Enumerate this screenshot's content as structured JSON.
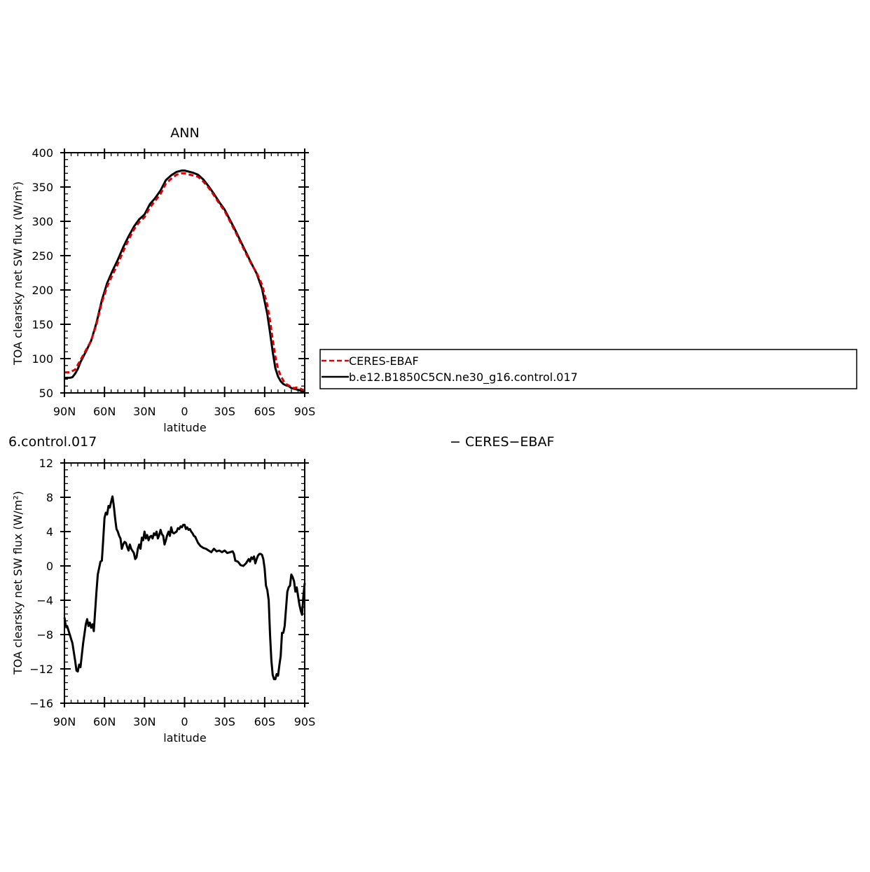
{
  "chart_data": [
    {
      "type": "line",
      "title": "ANN",
      "xlabel": "latitude",
      "ylabel": "TOA clearsky net SW flux (W/m²)",
      "xlim": [
        -90,
        90
      ],
      "ylim": [
        50,
        400
      ],
      "x_ticks": [
        -90,
        -60,
        -30,
        0,
        30,
        60,
        90
      ],
      "x_tick_labels": [
        "90N",
        "60N",
        "30N",
        "0",
        "30S",
        "60S",
        "90S"
      ],
      "y_ticks": [
        50,
        100,
        150,
        200,
        250,
        300,
        350,
        400
      ],
      "y_tick_labels": [
        "50",
        "100",
        "150",
        "200",
        "250",
        "300",
        "350",
        "400"
      ],
      "legend": {
        "placement": "right",
        "entries": [
          "CERES-EBAF",
          "b.e12.B1850C5CN.ne30_g16.control.017"
        ]
      },
      "series": [
        {
          "name": "CERES-EBAF",
          "color": "#dd0000",
          "dash": "dashed",
          "x": [
            -90,
            -86,
            -82,
            -78,
            -74,
            -70,
            -66,
            -62,
            -58,
            -54,
            -50,
            -46,
            -42,
            -38,
            -34,
            -30,
            -26,
            -22,
            -18,
            -14,
            -10,
            -6,
            -2,
            0,
            2,
            6,
            10,
            14,
            18,
            22,
            26,
            30,
            34,
            38,
            42,
            46,
            50,
            54,
            58,
            62,
            64,
            66,
            68,
            70,
            72,
            74,
            76,
            78,
            80,
            82,
            84,
            86,
            88,
            90
          ],
          "y": [
            80,
            80,
            84,
            98,
            112,
            126,
            150,
            182,
            205,
            222,
            238,
            256,
            273,
            288,
            299,
            306,
            320,
            330,
            340,
            355,
            362,
            368,
            370,
            370,
            369,
            367,
            365,
            358,
            349,
            338,
            326,
            315,
            300,
            285,
            269,
            253,
            238,
            225,
            208,
            178,
            155,
            128,
            103,
            85,
            75,
            68,
            63,
            61,
            58,
            57,
            58,
            57,
            55,
            54
          ]
        },
        {
          "name": "b.e12.B1850C5CN.ne30_g16.control.017",
          "color": "#000000",
          "dash": "solid",
          "x": [
            -90,
            -86,
            -84,
            -82,
            -80,
            -78,
            -74,
            -70,
            -66,
            -62,
            -58,
            -54,
            -50,
            -46,
            -42,
            -38,
            -34,
            -30,
            -26,
            -22,
            -18,
            -14,
            -10,
            -6,
            -2,
            0,
            2,
            6,
            10,
            14,
            18,
            22,
            26,
            30,
            34,
            38,
            42,
            46,
            50,
            54,
            58,
            62,
            64,
            66,
            68,
            70,
            72,
            74,
            76,
            78,
            80,
            82,
            84,
            86,
            88,
            90
          ],
          "y": [
            72,
            72,
            73,
            78,
            85,
            95,
            110,
            126,
            152,
            185,
            210,
            228,
            244,
            262,
            278,
            292,
            303,
            310,
            325,
            334,
            345,
            360,
            367,
            372,
            374,
            374,
            373,
            371,
            368,
            361,
            351,
            340,
            328,
            317,
            302,
            287,
            271,
            255,
            239,
            224,
            202,
            165,
            138,
            110,
            86,
            74,
            67,
            63,
            61,
            60,
            57,
            56,
            55,
            54,
            52,
            51
          ]
        }
      ]
    },
    {
      "type": "line",
      "title": "6.control.017",
      "title_right": "− CERES−EBAF",
      "xlabel": "latitude",
      "ylabel": "TOA clearsky net SW flux (W/m²)",
      "xlim": [
        -90,
        90
      ],
      "ylim": [
        -16,
        12
      ],
      "x_ticks": [
        -90,
        -60,
        -30,
        0,
        30,
        60,
        90
      ],
      "x_tick_labels": [
        "90N",
        "60N",
        "30N",
        "0",
        "30S",
        "60S",
        "90S"
      ],
      "y_ticks": [
        -16,
        -12,
        -8,
        -4,
        0,
        4,
        8,
        12
      ],
      "y_tick_labels": [
        "−16",
        "−12",
        "−8",
        "−4",
        "0",
        "4",
        "8",
        "12"
      ],
      "series": [
        {
          "color": "#000000",
          "dash": "solid",
          "x": [
            -90,
            -89,
            -88,
            -86,
            -84,
            -82,
            -81,
            -80,
            -79,
            -78,
            -76,
            -74,
            -73,
            -72,
            -71,
            -70,
            -69,
            -68,
            -66,
            -65,
            -63,
            -62,
            -61,
            -60,
            -59,
            -58,
            -57,
            -56,
            -55,
            -54,
            -53,
            -52,
            -51,
            -50,
            -49,
            -48,
            -47,
            -46,
            -45,
            -44,
            -43,
            -42,
            -41,
            -40,
            -38,
            -37,
            -36,
            -35,
            -34,
            -33,
            -32,
            -31,
            -30,
            -29,
            -28,
            -27,
            -26,
            -25,
            -24,
            -23,
            -22,
            -21,
            -20,
            -19,
            -18,
            -17,
            -16,
            -15,
            -14,
            -13,
            -12,
            -11,
            -10,
            -9,
            -8,
            -7,
            -6,
            -5,
            -4,
            -3,
            -2,
            -1,
            0,
            1,
            2,
            3,
            4,
            5,
            6,
            7,
            8,
            10,
            12,
            14,
            16,
            18,
            20,
            22,
            24,
            26,
            28,
            30,
            32,
            34,
            36,
            37,
            38,
            40,
            42,
            44,
            46,
            48,
            49,
            50,
            51,
            52,
            53,
            54,
            55,
            56,
            57,
            58,
            59,
            60,
            61,
            62,
            63,
            64,
            65,
            66,
            67,
            68,
            69,
            70,
            71,
            72,
            73,
            74,
            75,
            76,
            77,
            78,
            79,
            80,
            81,
            82,
            83,
            84,
            85,
            86,
            87,
            88,
            89,
            90
          ],
          "y": [
            -6.0,
            -7.0,
            -7.0,
            -8.0,
            -9.0,
            -11.0,
            -12.2,
            -12.3,
            -11.5,
            -11.8,
            -9.0,
            -6.8,
            -6.2,
            -7.0,
            -6.6,
            -7.2,
            -6.8,
            -7.6,
            -3.0,
            -1.0,
            0.5,
            0.6,
            3.0,
            5.6,
            6.2,
            6.0,
            7.0,
            6.8,
            7.5,
            8.1,
            7.0,
            5.5,
            4.3,
            4.0,
            3.5,
            3.2,
            2.0,
            2.5,
            2.8,
            2.7,
            2.2,
            1.8,
            2.5,
            2.0,
            1.5,
            0.8,
            1.0,
            2.0,
            2.5,
            2.0,
            3.3,
            3.0,
            4.0,
            3.2,
            3.6,
            3.0,
            3.4,
            3.5,
            3.2,
            3.8,
            3.6,
            4.0,
            3.2,
            3.6,
            4.2,
            3.7,
            3.5,
            2.5,
            3.0,
            3.6,
            4.0,
            3.5,
            4.5,
            3.9,
            3.8,
            3.9,
            4.0,
            4.4,
            4.3,
            4.6,
            4.5,
            4.8,
            4.8,
            4.3,
            4.5,
            4.2,
            4.3,
            4.0,
            3.8,
            3.5,
            3.4,
            2.7,
            2.3,
            2.1,
            2.0,
            1.8,
            1.6,
            2.0,
            1.7,
            1.8,
            1.6,
            1.8,
            1.5,
            1.6,
            1.7,
            1.4,
            0.6,
            0.5,
            0.1,
            0.0,
            0.3,
            0.8,
            0.5,
            1.0,
            0.8,
            1.1,
            0.3,
            0.8,
            1.2,
            1.4,
            1.4,
            1.3,
            0.8,
            -0.3,
            -2.3,
            -2.8,
            -4.0,
            -8.0,
            -11.0,
            -12.7,
            -13.2,
            -13.2,
            -12.6,
            -12.8,
            -11.6,
            -10.5,
            -7.8,
            -7.8,
            -7.0,
            -5.0,
            -3.0,
            -2.5,
            -2.3,
            -1.0,
            -1.3,
            -1.8,
            -3.0,
            -2.5,
            -3.5,
            -4.5,
            -5.2,
            -5.7,
            -3.5,
            -2.0
          ]
        }
      ]
    }
  ]
}
